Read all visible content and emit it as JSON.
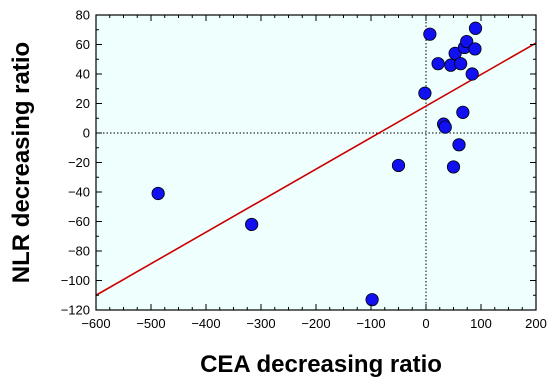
{
  "chart_data": {
    "type": "scatter",
    "title": "",
    "xlabel": "CEA decreasing ratio",
    "ylabel": "NLR decreasing ratio",
    "xlim": [
      -600,
      200
    ],
    "ylim": [
      -120,
      80
    ],
    "xticks": [
      -600,
      -500,
      -400,
      -300,
      -200,
      -100,
      0,
      100,
      200
    ],
    "yticks": [
      -120,
      -100,
      -80,
      -60,
      -40,
      -20,
      0,
      20,
      40,
      60,
      80
    ],
    "xtick_labels": [
      "−600",
      "−500",
      "−400",
      "−300",
      "−200",
      "−100",
      "0",
      "100",
      "200"
    ],
    "ytick_labels": [
      "−120",
      "−100",
      "−80",
      "−60",
      "−40",
      "−20",
      "0",
      "20",
      "40",
      "60",
      "80"
    ],
    "grid": false,
    "reference_lines": {
      "x": 0,
      "y": 0,
      "style": "dotted"
    },
    "points": [
      {
        "x": -487,
        "y": -41
      },
      {
        "x": -317,
        "y": -62
      },
      {
        "x": -98,
        "y": -113
      },
      {
        "x": -50,
        "y": -22
      },
      {
        "x": -2,
        "y": 27
      },
      {
        "x": 7,
        "y": 67
      },
      {
        "x": 22,
        "y": 47
      },
      {
        "x": 32,
        "y": 6
      },
      {
        "x": 35,
        "y": 4
      },
      {
        "x": 45,
        "y": 46
      },
      {
        "x": 50,
        "y": -23
      },
      {
        "x": 53,
        "y": 54
      },
      {
        "x": 60,
        "y": -8
      },
      {
        "x": 63,
        "y": 47
      },
      {
        "x": 67,
        "y": 14
      },
      {
        "x": 70,
        "y": 58
      },
      {
        "x": 74,
        "y": 62
      },
      {
        "x": 84,
        "y": 40
      },
      {
        "x": 89,
        "y": 57
      },
      {
        "x": 90,
        "y": 71
      }
    ],
    "regression_line": {
      "x": [
        -600,
        200
      ],
      "y": [
        -110,
        61
      ]
    },
    "colors": {
      "plot_background": "#eefffe",
      "marker_fill": "#1010f0",
      "marker_edge": "#000000",
      "regression_line": "#cc0000"
    }
  }
}
